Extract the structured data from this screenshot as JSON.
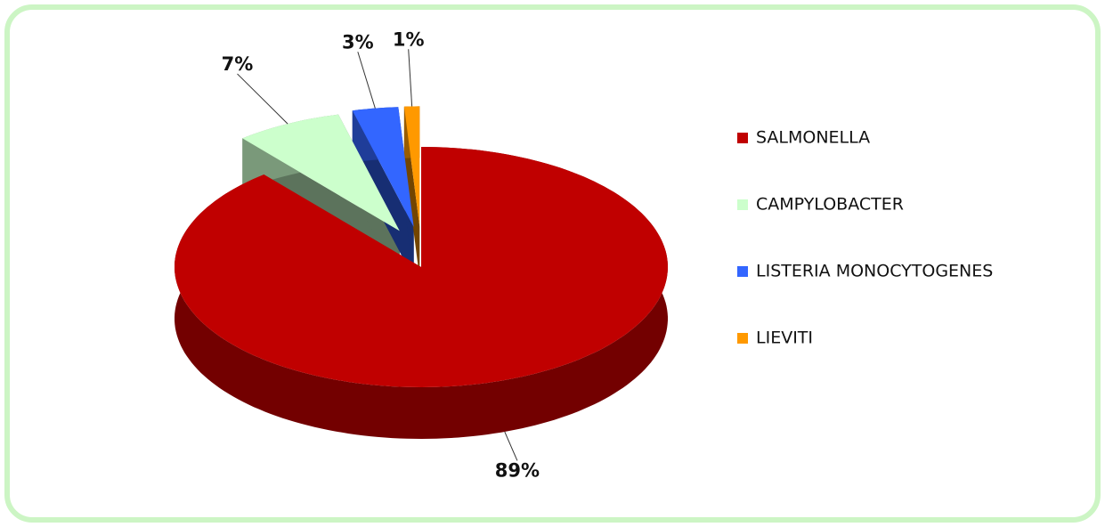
{
  "chart_data": {
    "type": "pie",
    "categories": [
      "SALMONELLA",
      "CAMPYLOBACTER",
      "LISTERIA MONOCYTOGENES",
      "LIEVITI"
    ],
    "values": [
      89,
      7,
      3,
      1
    ],
    "value_labels": [
      "89%",
      "7%",
      "3%",
      "1%"
    ],
    "colors": [
      "#c00000",
      "#ccffcc",
      "#3366ff",
      "#ff9900"
    ],
    "legend": "right"
  }
}
